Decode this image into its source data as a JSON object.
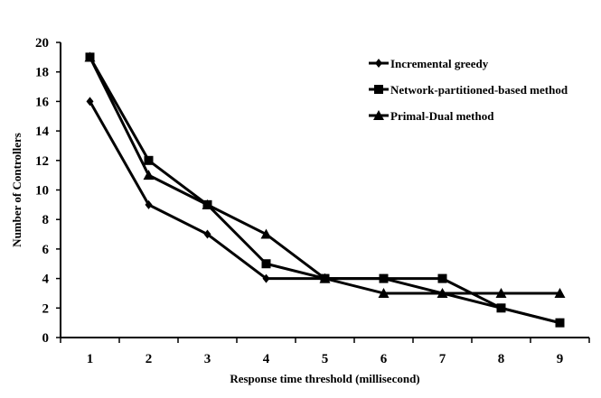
{
  "chart_data": {
    "type": "line",
    "xlabel": "Response time threshold (millisecond)",
    "ylabel": "Number of Controllers",
    "x": [
      1,
      2,
      3,
      4,
      5,
      6,
      7,
      8,
      9
    ],
    "xticks": [
      "1",
      "2",
      "3",
      "4",
      "5",
      "6",
      "7",
      "8",
      "9"
    ],
    "ylim": [
      0,
      20
    ],
    "yticks": [
      "0",
      "2",
      "4",
      "6",
      "8",
      "10",
      "12",
      "14",
      "16",
      "18",
      "20"
    ],
    "grid": false,
    "legend_position": "top-right",
    "series": [
      {
        "name": "Incremental greedy",
        "marker": "diamond",
        "values": [
          16,
          9,
          7,
          4,
          4,
          4,
          3,
          2,
          1
        ]
      },
      {
        "name": "Network-partitioned-based method",
        "marker": "square",
        "values": [
          19,
          12,
          9,
          5,
          4,
          4,
          4,
          2,
          1
        ]
      },
      {
        "name": "Primal-Dual method",
        "marker": "triangle",
        "values": [
          19,
          11,
          9,
          7,
          4,
          3,
          3,
          3,
          3
        ]
      }
    ],
    "line_color": "#000000"
  }
}
